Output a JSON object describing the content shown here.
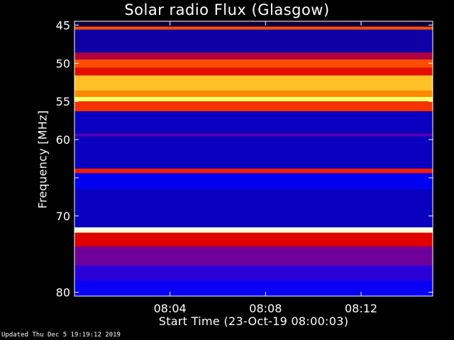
{
  "chart_data": {
    "type": "heatmap",
    "title": "Solar radio Flux (Glasgow)",
    "xlabel": "Start Time (23-Oct-19 08:00:03)",
    "ylabel": "Frequency [MHz]",
    "x_ticks": [
      "08:04",
      "08:08",
      "08:12"
    ],
    "x_tick_minutes": [
      4,
      8,
      12
    ],
    "x_range_minutes": [
      0,
      15
    ],
    "y_ticks": [
      45,
      50,
      55,
      60,
      65,
      70,
      80
    ],
    "y_tick_labels": [
      "45",
      "50",
      "55",
      "60",
      "",
      "70",
      "80"
    ],
    "y_range_mhz": [
      44.5,
      80.5
    ],
    "bands": [
      {
        "f0": 44.5,
        "f1": 45.2,
        "level": 0.08
      },
      {
        "f0": 45.2,
        "f1": 45.6,
        "level": 0.62
      },
      {
        "f0": 45.6,
        "f1": 48.6,
        "level": 0.18
      },
      {
        "f0": 48.6,
        "f1": 49.5,
        "level": 0.45
      },
      {
        "f0": 49.5,
        "f1": 50.6,
        "level": 0.62
      },
      {
        "f0": 50.6,
        "f1": 51.6,
        "level": 0.52
      },
      {
        "f0": 51.6,
        "f1": 53.6,
        "level": 0.8
      },
      {
        "f0": 53.6,
        "f1": 54.4,
        "level": 0.72
      },
      {
        "f0": 54.4,
        "f1": 55.0,
        "level": 0.88
      },
      {
        "f0": 55.0,
        "f1": 56.3,
        "level": 0.58
      },
      {
        "f0": 56.3,
        "f1": 59.2,
        "level": 0.2
      },
      {
        "f0": 59.2,
        "f1": 59.6,
        "level": 0.35
      },
      {
        "f0": 59.6,
        "f1": 63.8,
        "level": 0.2
      },
      {
        "f0": 63.8,
        "f1": 64.4,
        "level": 0.55
      },
      {
        "f0": 64.4,
        "f1": 66.5,
        "level": 0.24
      },
      {
        "f0": 66.5,
        "f1": 71.5,
        "level": 0.2
      },
      {
        "f0": 71.5,
        "f1": 72.2,
        "level": 0.97
      },
      {
        "f0": 72.2,
        "f1": 74.0,
        "level": 0.5
      },
      {
        "f0": 74.0,
        "f1": 76.5,
        "level": 0.38
      },
      {
        "f0": 76.5,
        "f1": 78.5,
        "level": 0.3
      },
      {
        "f0": 78.5,
        "f1": 80.5,
        "level": 0.26
      }
    ],
    "colormap": [
      "#000000",
      "#1a0060",
      "#0000ff",
      "#6a00a0",
      "#e00000",
      "#ff5000",
      "#ff9a00",
      "#ffff60",
      "#ffffff"
    ]
  },
  "footer": "Updated Thu Dec  5 19:19:12 2019"
}
